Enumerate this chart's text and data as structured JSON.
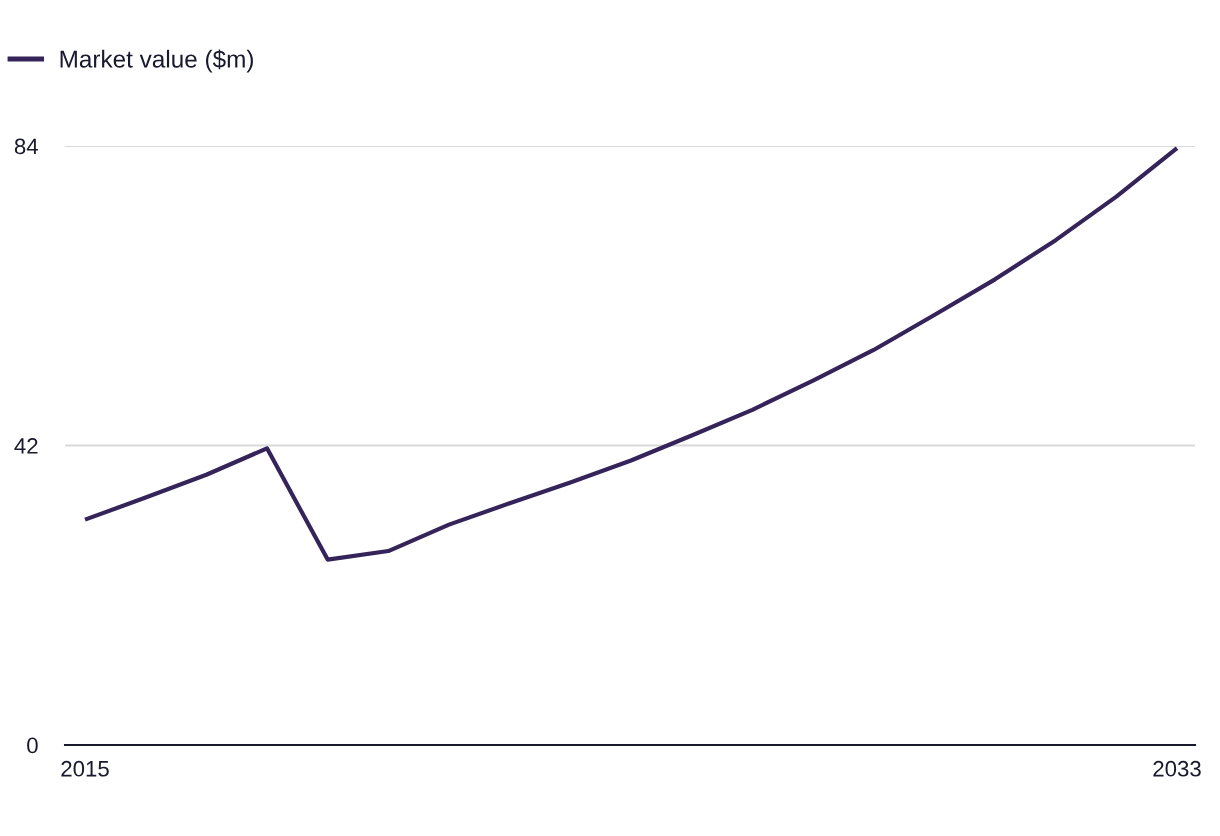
{
  "chart_data": {
    "type": "line",
    "categories": [
      "2015",
      null,
      null,
      null,
      null,
      null,
      null,
      null,
      null,
      null,
      null,
      null,
      null,
      null,
      null,
      null,
      null,
      null,
      "2033"
    ],
    "series": [
      {
        "name": "Market value ($m)",
        "color": "#35245a",
        "values": [
          31.6,
          34.7,
          37.9,
          41.6,
          26.0,
          27.2,
          30.9,
          33.9,
          36.8,
          39.9,
          43.4,
          47.0,
          51.1,
          55.4,
          60.3,
          65.3,
          70.8,
          76.9,
          83.7
        ]
      }
    ],
    "ylim": [
      0,
      84
    ],
    "yticks": [
      0,
      42,
      84
    ],
    "grid": "y",
    "legend": "top left"
  }
}
